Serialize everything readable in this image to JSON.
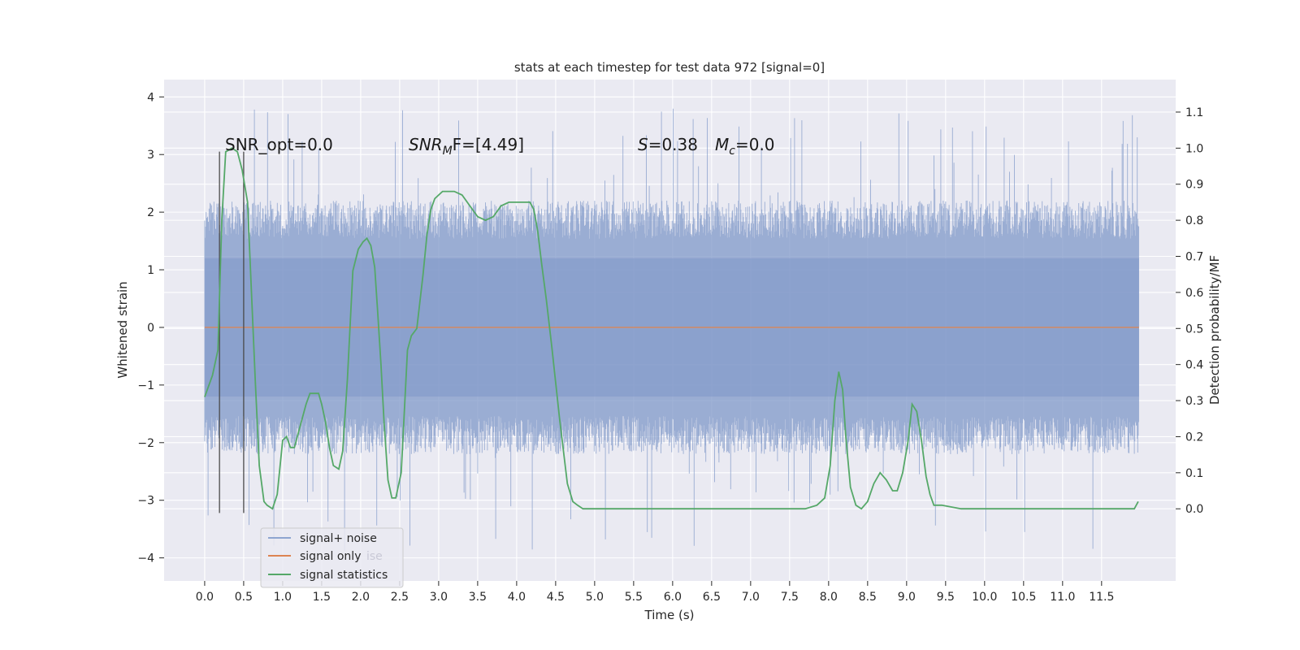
{
  "chart_data": {
    "type": "line",
    "title": "stats at each timestep for test data 972 [signal=0]",
    "xlabel": "Time (s)",
    "ylabel_left": "Whitened strain",
    "ylabel_right": "Detection probability/MF",
    "xlim": [
      -0.52,
      12.45
    ],
    "ylim_left": [
      -4.4,
      4.3
    ],
    "ylim_right": [
      -0.2,
      1.19
    ],
    "grid": true,
    "legend_position": "lower-left",
    "x_ticks": [
      0.0,
      0.5,
      1.0,
      1.5,
      2.0,
      2.5,
      3.0,
      3.5,
      4.0,
      4.5,
      5.0,
      5.5,
      6.0,
      6.5,
      7.0,
      7.5,
      8.0,
      8.5,
      9.0,
      9.5,
      10.0,
      10.5,
      11.0,
      11.5
    ],
    "x_tick_labels": [
      "0.0",
      "0.5",
      "1.0",
      "1.5",
      "2.0",
      "2.5",
      "3.0",
      "3.5",
      "4.0",
      "4.5",
      "5.0",
      "5.5",
      "6.0",
      "6.5",
      "7.0",
      "7.5",
      "8.0",
      "8.5",
      "9.0",
      "9.5",
      "10.0",
      "10.5",
      "11.0",
      "11.5"
    ],
    "y_left_ticks": [
      4,
      3,
      2,
      1,
      0,
      -1,
      -2,
      -3,
      -4
    ],
    "y_left_tick_labels": [
      "4",
      "3",
      "2",
      "1",
      "0",
      "−1",
      "−2",
      "−3",
      "−4"
    ],
    "y_right_ticks": [
      1.1,
      1.0,
      0.9,
      0.8,
      0.7,
      0.6,
      0.5,
      0.4,
      0.3,
      0.2,
      0.1,
      0.0
    ],
    "y_right_tick_labels": [
      "1.1",
      "1.0",
      "0.9",
      "0.8",
      "0.7",
      "0.6",
      "0.5",
      "0.4",
      "0.3",
      "0.2",
      "0.1",
      "0.0"
    ],
    "annotations": {
      "snr_opt": "SNR_opt=0.0",
      "snr_mf_prefix": "SNR",
      "snr_mf_sub": "M",
      "snr_mf_suffix": "F=[4.49]",
      "s_italic": "S",
      "s_value": "=0.38",
      "mc_italic": "M",
      "mc_sub": "c",
      "mc_value": "=0.0"
    },
    "vertical_markers_x": [
      0.19,
      0.5
    ],
    "noise_band": {
      "t_start": 0.0,
      "t_end": 11.98,
      "typical_abs_max": 2.2,
      "peak_abs_max": 3.9,
      "color": "#7f98c8"
    },
    "series": [
      {
        "name": "signal+ noise",
        "color": "#8ea5d0"
      },
      {
        "name": "signal only",
        "color": "#dd8452",
        "x": [
          0.0,
          11.98
        ],
        "y": [
          0.0,
          0.0
        ]
      },
      {
        "name": "signal statistics",
        "color": "#55a868",
        "axis": "right",
        "x": [
          0.0,
          0.1,
          0.17,
          0.22,
          0.27,
          0.35,
          0.42,
          0.48,
          0.55,
          0.6,
          0.65,
          0.7,
          0.76,
          0.8,
          0.87,
          0.93,
          1.0,
          1.05,
          1.1,
          1.15,
          1.2,
          1.3,
          1.35,
          1.4,
          1.46,
          1.5,
          1.55,
          1.6,
          1.65,
          1.72,
          1.77,
          1.83,
          1.9,
          1.97,
          2.03,
          2.08,
          2.13,
          2.18,
          2.22,
          2.26,
          2.3,
          2.35,
          2.4,
          2.45,
          2.52,
          2.6,
          2.65,
          2.72,
          2.8,
          2.85,
          2.9,
          2.95,
          3.0,
          3.05,
          3.1,
          3.2,
          3.3,
          3.4,
          3.5,
          3.6,
          3.7,
          3.8,
          3.9,
          4.0,
          4.1,
          4.17,
          4.22,
          4.27,
          4.32,
          4.38,
          4.45,
          4.55,
          4.65,
          4.72,
          4.78,
          4.85,
          5.0,
          5.5,
          6.0,
          6.5,
          7.0,
          7.3,
          7.5,
          7.7,
          7.85,
          7.95,
          8.02,
          8.08,
          8.13,
          8.18,
          8.22,
          8.28,
          8.35,
          8.42,
          8.5,
          8.58,
          8.66,
          8.74,
          8.82,
          8.88,
          8.95,
          9.02,
          9.07,
          9.13,
          9.19,
          9.25,
          9.3,
          9.35,
          9.45,
          9.7,
          10.0,
          10.5,
          11.0,
          11.3,
          11.6,
          11.8,
          11.85,
          11.92,
          11.97
        ],
        "y": [
          0.31,
          0.37,
          0.44,
          0.8,
          0.99,
          1.0,
          0.99,
          0.94,
          0.85,
          0.6,
          0.35,
          0.12,
          0.02,
          0.01,
          0.0,
          0.04,
          0.19,
          0.2,
          0.17,
          0.17,
          0.21,
          0.29,
          0.32,
          0.32,
          0.32,
          0.29,
          0.24,
          0.17,
          0.12,
          0.11,
          0.16,
          0.36,
          0.66,
          0.72,
          0.74,
          0.75,
          0.73,
          0.67,
          0.54,
          0.4,
          0.24,
          0.08,
          0.03,
          0.03,
          0.1,
          0.44,
          0.48,
          0.5,
          0.65,
          0.76,
          0.83,
          0.86,
          0.87,
          0.88,
          0.88,
          0.88,
          0.87,
          0.84,
          0.81,
          0.8,
          0.81,
          0.84,
          0.85,
          0.85,
          0.85,
          0.85,
          0.83,
          0.77,
          0.68,
          0.58,
          0.45,
          0.25,
          0.07,
          0.02,
          0.01,
          0.0,
          0.0,
          0.0,
          0.0,
          0.0,
          0.0,
          0.0,
          0.0,
          0.0,
          0.01,
          0.03,
          0.12,
          0.3,
          0.38,
          0.33,
          0.2,
          0.06,
          0.01,
          0.0,
          0.02,
          0.07,
          0.1,
          0.08,
          0.05,
          0.05,
          0.1,
          0.19,
          0.29,
          0.27,
          0.19,
          0.09,
          0.04,
          0.01,
          0.01,
          0.0,
          0.0,
          0.0,
          0.0,
          0.0,
          0.0,
          0.0,
          0.0,
          0.0,
          0.02
        ]
      }
    ],
    "legend_entries": [
      "signal+ noise",
      "signal only",
      "signal statistics"
    ],
    "legend_ghost_text": "ise",
    "colors": {
      "background": "#eaeaf2",
      "grid": "#ffffff",
      "marker_line": "#4a4a4a"
    }
  }
}
